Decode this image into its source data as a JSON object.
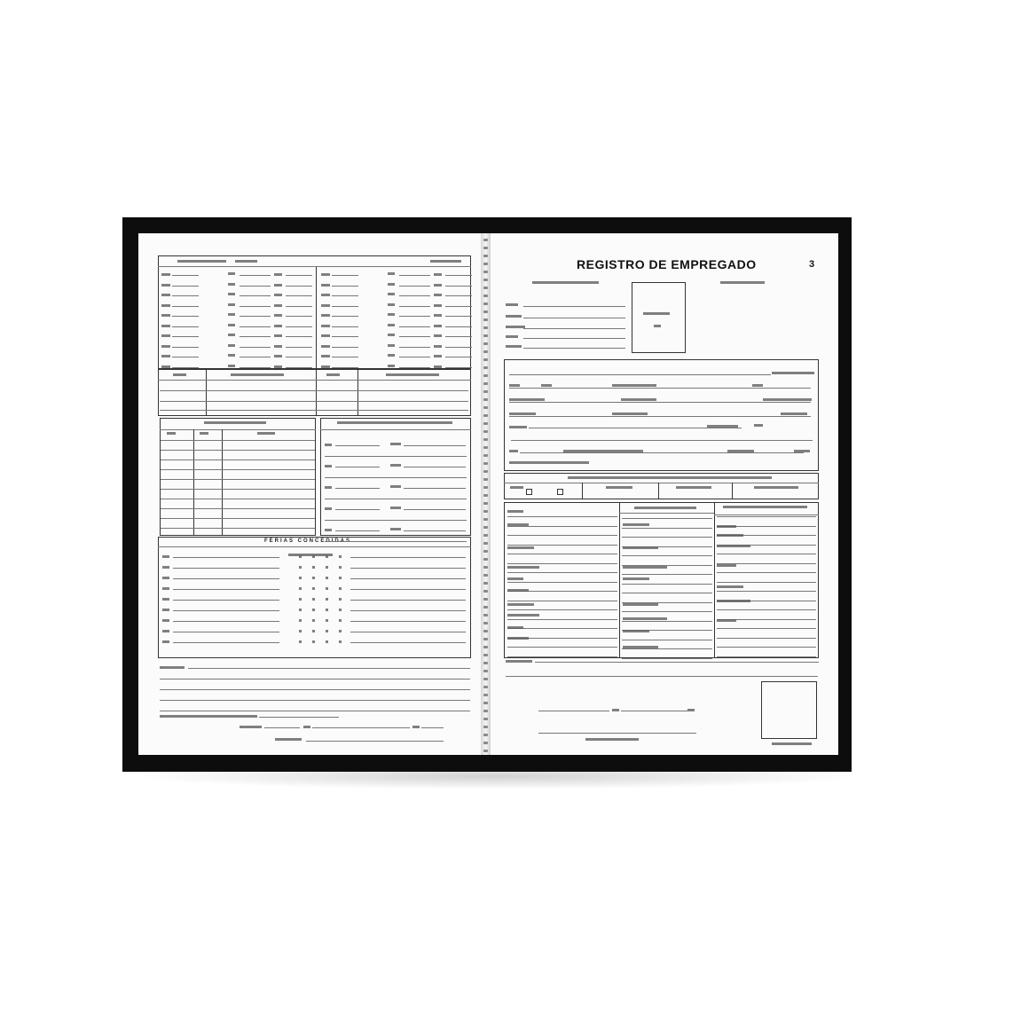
{
  "document": {
    "title": "REGISTRO DE EMPREGADO",
    "page_number": "3",
    "left_page": {
      "section_vacations": "FÉRIAS CONCEDIDAS"
    },
    "colors": {
      "cover": "#0d0d0d",
      "paper": "#fbfbfb",
      "ink": "#222222"
    }
  }
}
